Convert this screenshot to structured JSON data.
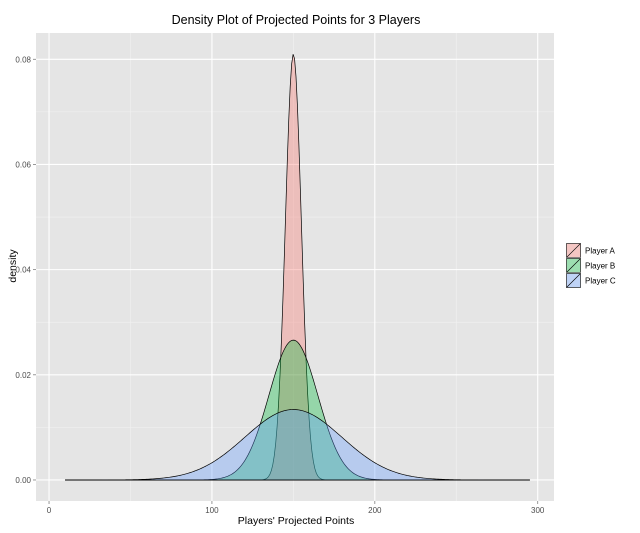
{
  "chart_data": {
    "type": "area",
    "title": "Density Plot of Projected Points for 3 Players",
    "xlabel": "Players' Projected Points",
    "ylabel": "density",
    "xlim": [
      -8,
      310
    ],
    "ylim": [
      -0.004,
      0.085
    ],
    "x_ticks": [
      0,
      100,
      200,
      300
    ],
    "x_tick_labels": [
      "0",
      "100",
      "200",
      "300"
    ],
    "y_ticks": [
      0.0,
      0.02,
      0.04,
      0.06,
      0.08
    ],
    "y_tick_labels": [
      "0.00",
      "0.02",
      "0.04",
      "0.06",
      "0.08"
    ],
    "grid": true,
    "legend_position": "right",
    "series": [
      {
        "name": "Player A",
        "color": "#F8766D",
        "peak_x": 150,
        "peak_density": 0.081,
        "sd": 4.9,
        "x_range": [
          10,
          295
        ]
      },
      {
        "name": "Player B",
        "color": "#00BA38",
        "peak_x": 150,
        "peak_density": 0.0266,
        "sd": 15,
        "x_range": [
          10,
          295
        ]
      },
      {
        "name": "Player C",
        "color": "#619CFF",
        "peak_x": 150,
        "peak_density": 0.0134,
        "sd": 29.8,
        "x_range": [
          10,
          295
        ]
      }
    ]
  }
}
